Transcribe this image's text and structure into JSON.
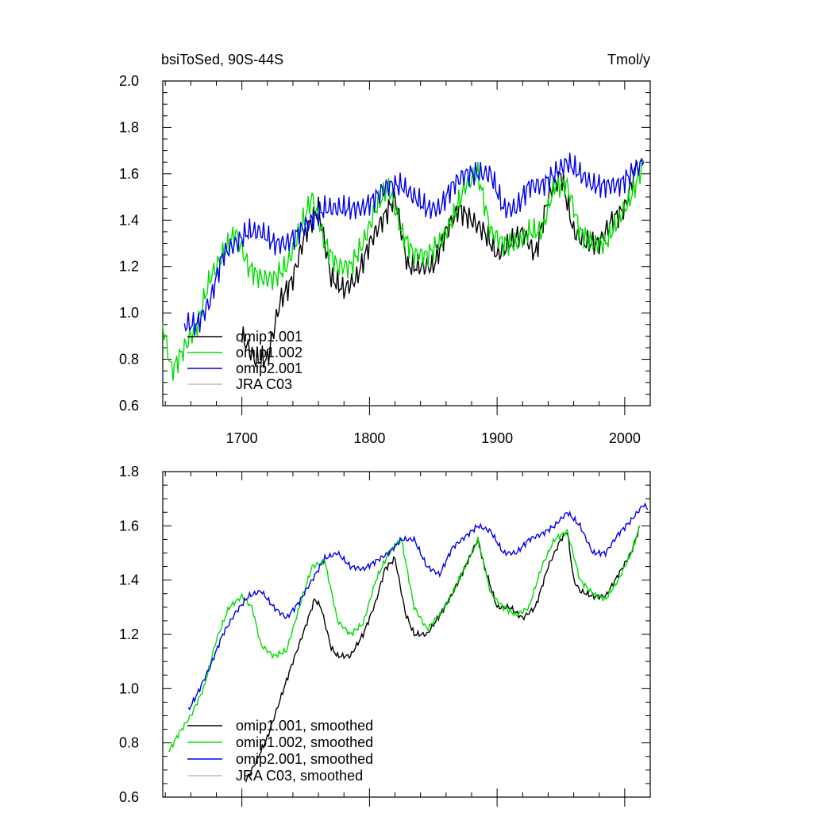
{
  "chart_data": [
    {
      "type": "line",
      "title": "bsiToSed, 90S-44S",
      "units": "Tmol/y",
      "xlim": [
        1638,
        2020
      ],
      "ylim": [
        0.6,
        2.0
      ],
      "x_ticks": [
        1700,
        1800,
        1900,
        2000
      ],
      "x_tick_labels": [
        "1700",
        "1800",
        "1900",
        "2000"
      ],
      "y_ticks": [
        0.6,
        0.8,
        1.0,
        1.2,
        1.4,
        1.6,
        1.8,
        2.0
      ],
      "y_tick_labels": [
        "0.6",
        "0.8",
        "1.0",
        "1.2",
        "1.4",
        "1.6",
        "1.8",
        "2.0"
      ],
      "legend_position": "lower-left",
      "series": [
        {
          "name": "omip1.001",
          "color": "#000000",
          "x": [
            1700,
            1710,
            1720,
            1730,
            1740,
            1750,
            1760,
            1770,
            1780,
            1790,
            1800,
            1810,
            1820,
            1830,
            1840,
            1850,
            1860,
            1870,
            1880,
            1890,
            1900,
            1910,
            1920,
            1930,
            1940,
            1950,
            1960,
            1970,
            1980,
            1990,
            2000,
            2010
          ],
          "y": [
            0.9,
            0.8,
            0.8,
            1.05,
            1.15,
            1.35,
            1.45,
            1.15,
            1.1,
            1.15,
            1.3,
            1.4,
            1.5,
            1.2,
            1.2,
            1.2,
            1.35,
            1.45,
            1.4,
            1.35,
            1.25,
            1.3,
            1.35,
            1.25,
            1.5,
            1.6,
            1.35,
            1.3,
            1.3,
            1.4,
            1.45,
            1.65
          ]
        },
        {
          "name": "omip1.002",
          "color": "#00dd00",
          "x": [
            1638,
            1645,
            1655,
            1665,
            1675,
            1685,
            1695,
            1705,
            1715,
            1725,
            1735,
            1745,
            1755,
            1765,
            1775,
            1785,
            1795,
            1805,
            1815,
            1825,
            1835,
            1845,
            1855,
            1865,
            1875,
            1885,
            1895,
            1905,
            1915,
            1925,
            1935,
            1945,
            1955,
            1965,
            1975,
            1985,
            1995,
            2005,
            2015
          ],
          "y": [
            0.95,
            0.75,
            0.85,
            0.95,
            1.15,
            1.25,
            1.35,
            1.2,
            1.15,
            1.15,
            1.2,
            1.35,
            1.5,
            1.3,
            1.2,
            1.2,
            1.3,
            1.45,
            1.55,
            1.35,
            1.25,
            1.25,
            1.3,
            1.4,
            1.55,
            1.6,
            1.35,
            1.3,
            1.3,
            1.35,
            1.35,
            1.55,
            1.55,
            1.35,
            1.3,
            1.3,
            1.4,
            1.5,
            1.65
          ]
        },
        {
          "name": "omip2.001",
          "color": "#0000ee",
          "x": [
            1655,
            1665,
            1675,
            1685,
            1695,
            1705,
            1715,
            1725,
            1735,
            1745,
            1755,
            1765,
            1775,
            1785,
            1795,
            1805,
            1815,
            1825,
            1835,
            1845,
            1855,
            1865,
            1875,
            1885,
            1895,
            1905,
            1915,
            1925,
            1935,
            1945,
            1955,
            1965,
            1975,
            1985,
            1995,
            2005,
            2015
          ],
          "y": [
            0.95,
            0.95,
            1.05,
            1.25,
            1.3,
            1.35,
            1.35,
            1.3,
            1.3,
            1.35,
            1.4,
            1.45,
            1.45,
            1.45,
            1.45,
            1.5,
            1.55,
            1.55,
            1.5,
            1.45,
            1.45,
            1.55,
            1.6,
            1.6,
            1.6,
            1.45,
            1.45,
            1.55,
            1.55,
            1.6,
            1.65,
            1.6,
            1.55,
            1.55,
            1.55,
            1.6,
            1.65
          ]
        },
        {
          "name": "JRA C03",
          "color": "#bbbbbb",
          "x": [],
          "y": []
        }
      ]
    },
    {
      "type": "line",
      "title": "",
      "units": "",
      "xlim": [
        1638,
        2020
      ],
      "ylim": [
        0.6,
        1.8
      ],
      "x_ticks": [
        1700,
        1800,
        1900,
        2000
      ],
      "x_tick_labels": [],
      "y_ticks": [
        0.6,
        0.8,
        1.0,
        1.2,
        1.4,
        1.6,
        1.8
      ],
      "y_tick_labels": [
        "0.6",
        "0.8",
        "1.0",
        "1.2",
        "1.4",
        "1.6",
        "1.8"
      ],
      "legend_position": "lower-left",
      "series": [
        {
          "name": "omip1.001, smoothed",
          "color": "#000000",
          "x": [
            1703,
            1710,
            1720,
            1730,
            1740,
            1750,
            1757,
            1762,
            1770,
            1775,
            1785,
            1795,
            1805,
            1812,
            1820,
            1828,
            1835,
            1845,
            1855,
            1865,
            1875,
            1880,
            1885,
            1890,
            1900,
            1910,
            1920,
            1930,
            1940,
            1950,
            1955,
            1960,
            1965,
            1975,
            1985,
            1995,
            2005,
            2012
          ],
          "y": [
            0.66,
            0.72,
            0.82,
            0.96,
            1.1,
            1.23,
            1.33,
            1.3,
            1.15,
            1.12,
            1.12,
            1.2,
            1.32,
            1.44,
            1.48,
            1.28,
            1.2,
            1.2,
            1.27,
            1.35,
            1.45,
            1.5,
            1.55,
            1.45,
            1.3,
            1.3,
            1.26,
            1.3,
            1.45,
            1.55,
            1.58,
            1.4,
            1.36,
            1.34,
            1.34,
            1.42,
            1.5,
            1.6
          ]
        },
        {
          "name": "omip1.002, smoothed",
          "color": "#00dd00",
          "x": [
            1643,
            1650,
            1660,
            1670,
            1680,
            1690,
            1700,
            1708,
            1715,
            1725,
            1735,
            1745,
            1755,
            1765,
            1775,
            1785,
            1795,
            1805,
            1815,
            1825,
            1835,
            1845,
            1855,
            1865,
            1875,
            1885,
            1895,
            1905,
            1915,
            1925,
            1935,
            1945,
            1955,
            1965,
            1975,
            1985,
            1995,
            2005,
            2012
          ],
          "y": [
            0.77,
            0.83,
            0.9,
            1.0,
            1.18,
            1.3,
            1.34,
            1.3,
            1.16,
            1.12,
            1.14,
            1.3,
            1.45,
            1.47,
            1.25,
            1.2,
            1.24,
            1.4,
            1.5,
            1.55,
            1.3,
            1.22,
            1.27,
            1.35,
            1.45,
            1.55,
            1.35,
            1.3,
            1.27,
            1.3,
            1.45,
            1.55,
            1.58,
            1.4,
            1.35,
            1.33,
            1.4,
            1.5,
            1.6
          ]
        },
        {
          "name": "omip2.001, smoothed",
          "color": "#0000ee",
          "x": [
            1658,
            1665,
            1675,
            1685,
            1695,
            1705,
            1715,
            1725,
            1735,
            1745,
            1755,
            1765,
            1775,
            1785,
            1795,
            1805,
            1815,
            1825,
            1835,
            1845,
            1855,
            1865,
            1875,
            1885,
            1895,
            1905,
            1915,
            1925,
            1935,
            1945,
            1955,
            1965,
            1975,
            1985,
            1995,
            2005,
            2015,
            2018
          ],
          "y": [
            0.92,
            0.98,
            1.08,
            1.2,
            1.28,
            1.34,
            1.36,
            1.3,
            1.26,
            1.32,
            1.4,
            1.48,
            1.5,
            1.45,
            1.44,
            1.47,
            1.5,
            1.55,
            1.55,
            1.45,
            1.42,
            1.52,
            1.56,
            1.6,
            1.58,
            1.5,
            1.5,
            1.55,
            1.57,
            1.6,
            1.65,
            1.6,
            1.5,
            1.5,
            1.57,
            1.62,
            1.68,
            1.66
          ]
        },
        {
          "name": "JRA C03, smoothed",
          "color": "#bbbbbb",
          "x": [],
          "y": []
        }
      ]
    }
  ]
}
